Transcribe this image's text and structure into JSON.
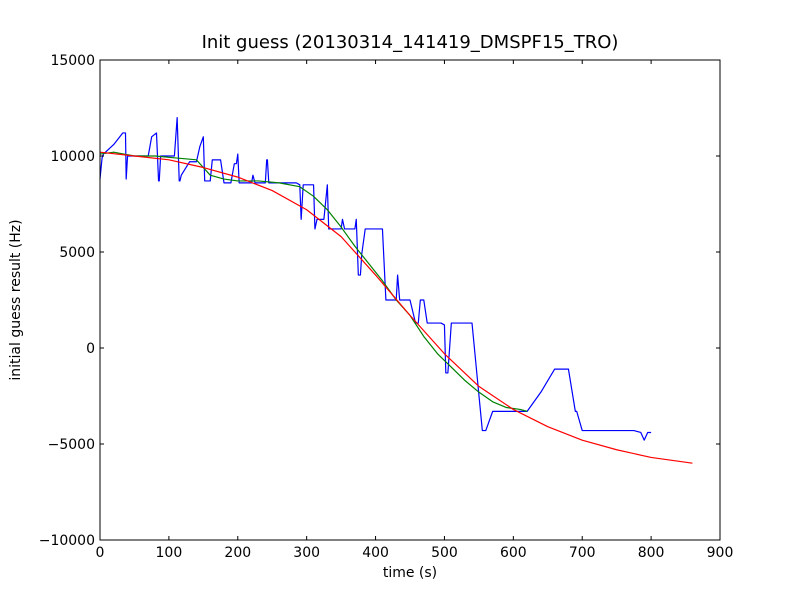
{
  "chart_data": {
    "type": "line",
    "title": "Init guess (20130314_141419_DMSPF15_TRO)",
    "xlabel": "time (s)",
    "ylabel": "initial guess result (Hz)",
    "xlim": [
      0,
      900
    ],
    "ylim": [
      -10000,
      15000
    ],
    "xticks": [
      0,
      100,
      200,
      300,
      400,
      500,
      600,
      700,
      800,
      900
    ],
    "yticks": [
      -10000,
      -5000,
      0,
      5000,
      10000,
      15000
    ],
    "grid": false,
    "legend": "none",
    "series": [
      {
        "color": "#0000ff",
        "x": [
          0,
          3,
          5,
          20,
          33,
          37,
          38,
          40,
          50,
          60,
          70,
          75,
          82,
          85,
          86,
          88,
          90,
          100,
          108,
          112,
          115,
          116,
          118,
          130,
          140,
          145,
          150,
          152,
          160,
          163,
          170,
          175,
          180,
          190,
          195,
          198,
          200,
          202,
          210,
          220,
          222,
          225,
          230,
          240,
          242,
          243,
          245,
          250,
          260,
          270,
          280,
          285,
          290,
          292,
          295,
          300,
          310,
          312,
          315,
          320,
          325,
          330,
          332,
          335,
          350,
          352,
          355,
          360,
          365,
          370,
          372,
          375,
          378,
          380,
          385,
          390,
          400,
          410,
          415,
          420,
          430,
          432,
          435,
          440,
          450,
          458,
          462,
          465,
          470,
          475,
          480,
          490,
          495,
          500,
          502,
          505,
          510,
          520,
          540,
          555,
          560,
          570,
          580,
          600,
          620,
          640,
          660,
          680,
          690,
          692,
          700,
          720,
          740,
          760,
          775,
          785,
          790,
          795,
          800
        ],
        "y": [
          8800,
          9900,
          10100,
          10600,
          11200,
          11200,
          8800,
          10000,
          10000,
          10000,
          10000,
          11000,
          11200,
          8700,
          8700,
          10000,
          10000,
          10000,
          10000,
          12000,
          8700,
          8700,
          9000,
          9700,
          9700,
          10500,
          11000,
          8700,
          8700,
          9800,
          9800,
          9800,
          8600,
          8600,
          9600,
          9600,
          10100,
          8600,
          8600,
          8600,
          9000,
          8600,
          8600,
          8600,
          9800,
          9800,
          8600,
          8600,
          8600,
          8600,
          8600,
          8600,
          8500,
          6700,
          8500,
          8500,
          8500,
          6200,
          6700,
          6700,
          6700,
          8500,
          6200,
          6200,
          6200,
          6700,
          6200,
          6200,
          6200,
          6200,
          6700,
          3800,
          3800,
          4900,
          6200,
          6200,
          6200,
          6200,
          2500,
          2500,
          2500,
          3800,
          2500,
          2500,
          2500,
          1300,
          1300,
          2500,
          2500,
          1300,
          1300,
          1300,
          1300,
          1200,
          -1300,
          -1300,
          1300,
          1300,
          1300,
          -4300,
          -4300,
          -3300,
          -3300,
          -3300,
          -3300,
          -2300,
          -1100,
          -1100,
          -3300,
          -3300,
          -4300,
          -4300,
          -4300,
          -4300,
          -4300,
          -4400,
          -4800,
          -4400,
          -4400
        ]
      },
      {
        "color": "#008000",
        "x": [
          0,
          20,
          50,
          80,
          110,
          140,
          160,
          180,
          200,
          230,
          260,
          290,
          310,
          330,
          350,
          370,
          390,
          410,
          430,
          450,
          470,
          490,
          510,
          530,
          550,
          570,
          590,
          610,
          620
        ],
        "y": [
          10100,
          10200,
          10000,
          10000,
          9900,
          9800,
          9000,
          8800,
          8700,
          8700,
          8600,
          8400,
          7900,
          7200,
          6300,
          5300,
          4400,
          3500,
          2500,
          1700,
          600,
          -300,
          -1000,
          -1700,
          -2300,
          -2800,
          -3100,
          -3200,
          -3300
        ]
      },
      {
        "color": "#ff0000",
        "x": [
          0,
          50,
          100,
          150,
          200,
          250,
          300,
          350,
          400,
          450,
          500,
          550,
          600,
          650,
          700,
          750,
          800,
          860
        ],
        "y": [
          10200,
          10000,
          9800,
          9400,
          8900,
          8200,
          7200,
          5800,
          3800,
          1700,
          -300,
          -2000,
          -3200,
          -4100,
          -4800,
          -5300,
          -5700,
          -6000
        ]
      }
    ]
  }
}
